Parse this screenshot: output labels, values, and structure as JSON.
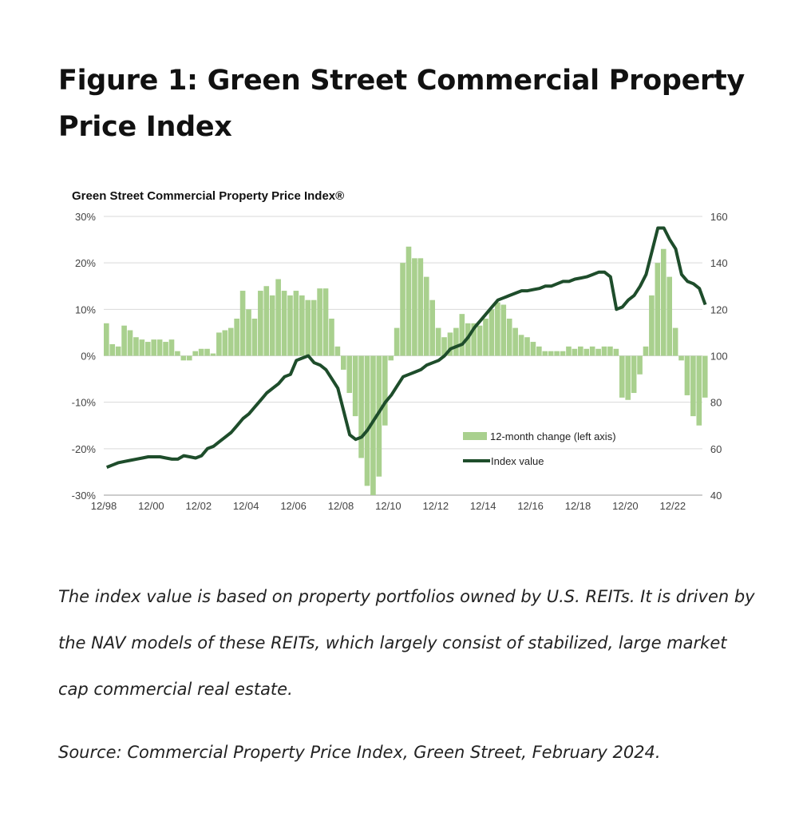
{
  "heading": "Figure 1: Green Street Commercial Property Price Index",
  "caption": "The index value is based on property portfolios owned by U.S. REITs. It is driven by the NAV models of these REITs, which largely consist of stabilized, large market cap commercial real estate.",
  "source": "Source: Commercial Property Price Index, Green Street, February 2024.",
  "chart_data": {
    "type": "bar+line",
    "title": "Green Street Commercial Property Price Index®",
    "frequency": "quarterly",
    "start_period": "12/98",
    "x_tick_labels": [
      "12/98",
      "12/00",
      "12/02",
      "12/04",
      "12/06",
      "12/08",
      "12/10",
      "12/12",
      "12/14",
      "12/16",
      "12/18",
      "12/20",
      "12/22"
    ],
    "left_axis": {
      "ylim": [
        -30,
        30
      ],
      "tick_labels": [
        "30%",
        "20%",
        "10%",
        "0%",
        "-10%",
        "-20%",
        "-30%"
      ],
      "ticks": [
        30,
        20,
        10,
        0,
        -10,
        -20,
        -30
      ]
    },
    "right_axis": {
      "ylim": [
        40,
        160
      ],
      "tick_labels": [
        "160",
        "140",
        "120",
        "100",
        "80",
        "60",
        "40"
      ],
      "ticks": [
        160,
        140,
        120,
        100,
        80,
        60,
        40
      ]
    },
    "grid": true,
    "legend_position": "bottom-right",
    "series": [
      {
        "name": "12-month change (left axis)",
        "type": "bar",
        "axis": "left",
        "color": "#a9d08e",
        "values": [
          7,
          2.5,
          2,
          6.5,
          5.5,
          4,
          3.5,
          3,
          3.5,
          3.5,
          3,
          3.5,
          1,
          -1,
          -1,
          1,
          1.5,
          1.5,
          0.5,
          5,
          5.5,
          6,
          8,
          14,
          10,
          8,
          14,
          15,
          13,
          16.5,
          14,
          13,
          14,
          13,
          12,
          12,
          14.5,
          14.5,
          8,
          2,
          -3,
          -8,
          -13,
          -22,
          -28,
          -30,
          -26,
          -15,
          -1,
          6,
          20,
          23.5,
          21,
          21,
          17,
          12,
          6,
          4,
          5,
          6,
          9,
          7,
          7,
          6.5,
          8,
          10,
          11.5,
          11,
          8,
          6,
          4.5,
          4,
          3,
          2,
          1,
          1,
          1,
          1,
          2,
          1.5,
          2,
          1.5,
          2,
          1.5,
          2,
          2,
          1.5,
          -9,
          -9.5,
          -8,
          -4,
          2,
          13,
          20,
          23,
          17,
          6,
          -1,
          -8.5,
          -13,
          -15,
          -9
        ]
      },
      {
        "name": "Index value",
        "type": "line",
        "axis": "right",
        "color": "#1e4d2b",
        "values": [
          52,
          53,
          54,
          54.5,
          55,
          55.5,
          56,
          56.5,
          56.5,
          56.5,
          56,
          55.5,
          55.5,
          57,
          56.5,
          56,
          57,
          60,
          61,
          63,
          65,
          67,
          70,
          73,
          75,
          78,
          81,
          84,
          86,
          88,
          91,
          92,
          98,
          99,
          100,
          97,
          96,
          94,
          90,
          86,
          76,
          66,
          64,
          65,
          68,
          72,
          76,
          80,
          83,
          87,
          91,
          92,
          93,
          94,
          96,
          97,
          98,
          100,
          103,
          104,
          105,
          108,
          112,
          115,
          118,
          121,
          124,
          125,
          126,
          127,
          128,
          128,
          128.5,
          129,
          130,
          130,
          131,
          132,
          132,
          133,
          133.5,
          134,
          135,
          136,
          136,
          134,
          120,
          121,
          124,
          126,
          130,
          135,
          145,
          155,
          155,
          150,
          146,
          135,
          132,
          131,
          129,
          122
        ]
      }
    ]
  }
}
